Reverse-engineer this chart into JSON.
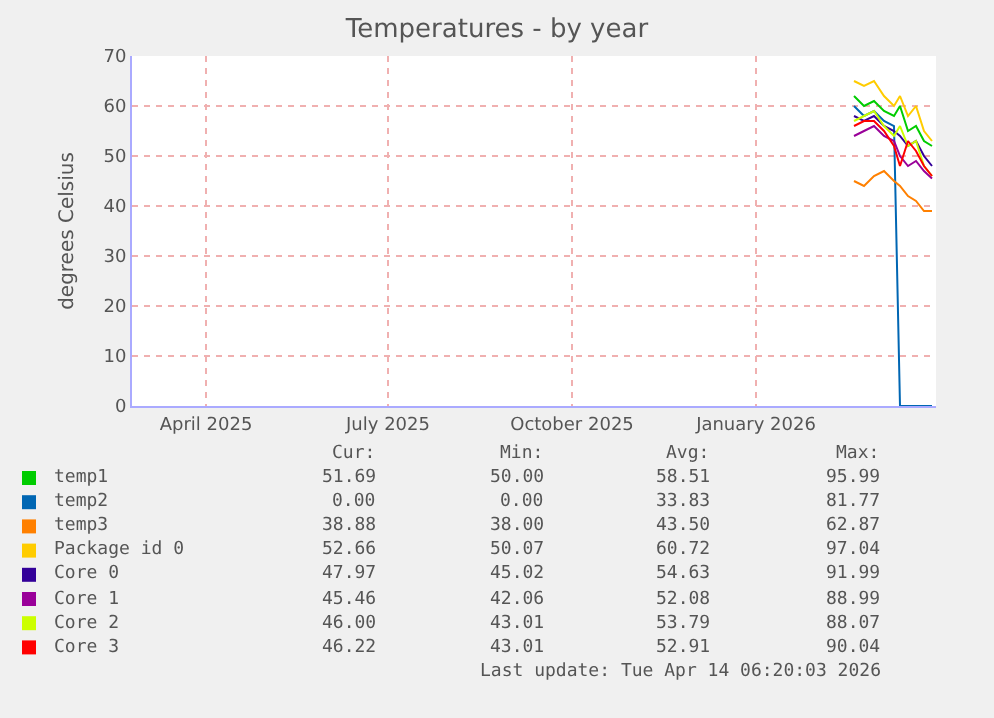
{
  "chart_data": {
    "type": "line",
    "title": "Temperatures - by year",
    "ylabel": "degrees Celsius",
    "x": [
      "2026-03-05",
      "2026-03-10",
      "2026-03-15",
      "2026-03-20",
      "2026-03-25",
      "2026-03-28",
      "2026-04-01",
      "2026-04-05",
      "2026-04-09",
      "2026-04-13"
    ],
    "series": [
      {
        "name": "temp1",
        "color": "#00cc00",
        "values": [
          62,
          60,
          61,
          59,
          58,
          60,
          55,
          56,
          53,
          52
        ]
      },
      {
        "name": "temp2",
        "color": "#0066b3",
        "values": [
          60,
          58,
          59,
          57,
          56,
          0,
          0,
          0,
          0,
          0
        ]
      },
      {
        "name": "temp3",
        "color": "#ff8000",
        "values": [
          45,
          44,
          46,
          47,
          45,
          44,
          42,
          41,
          39,
          39
        ]
      },
      {
        "name": "Package id 0",
        "color": "#ffcc00",
        "values": [
          65,
          64,
          65,
          62,
          60,
          62,
          58,
          60,
          55,
          53
        ]
      },
      {
        "name": "Core 0",
        "color": "#330099",
        "values": [
          58,
          57,
          58,
          56,
          55,
          54,
          52,
          53,
          50,
          48
        ]
      },
      {
        "name": "Core 1",
        "color": "#990099",
        "values": [
          54,
          55,
          56,
          54,
          53,
          50,
          48,
          49,
          47,
          45.5
        ]
      },
      {
        "name": "Core 2",
        "color": "#ccff00",
        "values": [
          57,
          58,
          59,
          56,
          54,
          56,
          52,
          53,
          48,
          46
        ]
      },
      {
        "name": "Core 3",
        "color": "#ff0000",
        "values": [
          56,
          57,
          57,
          55,
          52,
          48,
          53,
          51,
          48,
          46
        ]
      }
    ],
    "xlim": [
      "2025-03-09",
      "2026-04-15"
    ],
    "xticks": [
      {
        "value": "2025-04-15",
        "label": "April 2025"
      },
      {
        "value": "2025-07-15",
        "label": "July 2025"
      },
      {
        "value": "2025-10-15",
        "label": "October 2025"
      },
      {
        "value": "2026-01-15",
        "label": "January 2026"
      }
    ],
    "ylim": [
      0,
      70
    ],
    "yticks": [
      0,
      10,
      20,
      30,
      40,
      50,
      60,
      70
    ],
    "grid": true,
    "legend": "bottom",
    "marker": "none",
    "line_style": "solid",
    "annotations": [
      "Cur:",
      "Min:",
      "Avg:",
      "Max:",
      "51.69",
      "50.00",
      "58.51",
      "95.99",
      "0.00",
      "0.00",
      "33.83",
      "81.77",
      "38.88",
      "38.00",
      "43.50",
      "62.87",
      "52.66",
      "50.07",
      "60.72",
      "97.04",
      "47.97",
      "45.02",
      "54.63",
      "91.99",
      "45.46",
      "42.06",
      "52.08",
      "88.99",
      "46.00",
      "43.01",
      "53.79",
      "88.07",
      "46.22",
      "43.01",
      "52.91",
      "90.04",
      "Last update: Tue Apr 14 06:20:03 2026"
    ]
  }
}
